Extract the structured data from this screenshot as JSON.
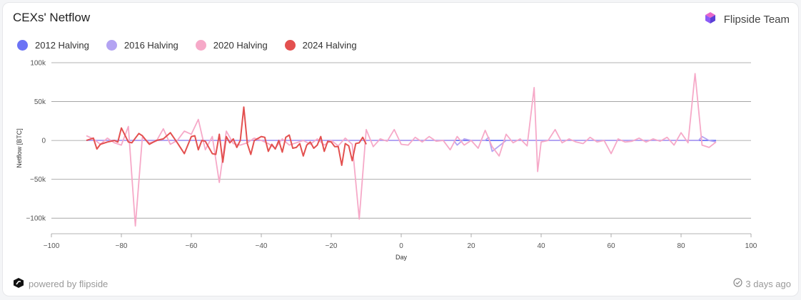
{
  "header": {
    "title": "CEXs' Netflow",
    "brand_label": "Flipside Team"
  },
  "footer": {
    "powered_label": "powered by flipside",
    "updated_label": "3 days ago"
  },
  "icons": {
    "brand": "flipside-cube-icon",
    "powered": "flipside-logo-icon",
    "updated": "check-circle-icon"
  },
  "chart_data": {
    "type": "line",
    "title": "CEXs' Netflow",
    "xlabel": "Day",
    "ylabel": "Netflow [BTC]",
    "xlim": [
      -100,
      100
    ],
    "ylim": [
      -120000,
      100000
    ],
    "x_ticks": [
      -100,
      -80,
      -60,
      -40,
      -20,
      0,
      20,
      40,
      60,
      80,
      100
    ],
    "y_ticks": [
      100000,
      50000,
      0,
      -50000,
      -100000
    ],
    "y_tick_labels": [
      "100k",
      "50k",
      "0",
      "−50k",
      "−100k"
    ],
    "grid": "horizontal",
    "legend_position": "top-left",
    "series": [
      {
        "name": "2012 Halving",
        "color": "#6b73f5",
        "x": [
          -90,
          -85,
          -80,
          -75,
          -70,
          -65,
          -60,
          -55,
          -50,
          -45,
          -40,
          -35,
          -30,
          -25,
          -20,
          -15,
          -10,
          -5,
          0,
          5,
          10,
          15,
          20,
          25,
          30,
          35,
          40,
          45,
          50,
          55,
          60,
          65,
          70,
          75,
          80,
          85,
          90
        ],
        "y": [
          0,
          0,
          0,
          0,
          0,
          0,
          0,
          0,
          0,
          0,
          0,
          0,
          0,
          0,
          0,
          0,
          0,
          0,
          0,
          0,
          0,
          0,
          0,
          0,
          0,
          0,
          0,
          0,
          0,
          0,
          0,
          0,
          0,
          0,
          0,
          0,
          0
        ]
      },
      {
        "name": "2016 Halving",
        "color": "#b3a3f2",
        "x": [
          -90,
          -85,
          -80,
          -75,
          -70,
          -65,
          -60,
          -55,
          -50,
          -45,
          -40,
          -35,
          -30,
          -25,
          -20,
          -15,
          -10,
          -5,
          0,
          5,
          10,
          15,
          16,
          18,
          20,
          24,
          25,
          26,
          30,
          35,
          40,
          45,
          50,
          55,
          60,
          65,
          70,
          75,
          80,
          84,
          85,
          86,
          88,
          90
        ],
        "y": [
          0,
          0,
          0,
          0,
          0,
          0,
          0,
          0,
          0,
          0,
          0,
          0,
          0,
          0,
          0,
          0,
          0,
          0,
          0,
          0,
          0,
          0,
          -6000,
          2000,
          0,
          0,
          4000,
          -14000,
          0,
          0,
          0,
          0,
          0,
          0,
          0,
          0,
          0,
          0,
          0,
          0,
          0,
          5000,
          0,
          -2000
        ]
      },
      {
        "name": "2020 Halving",
        "color": "#f6a9c8",
        "x": [
          -90,
          -88,
          -86,
          -84,
          -82,
          -80,
          -78,
          -76,
          -74,
          -72,
          -70,
          -68,
          -66,
          -64,
          -62,
          -60,
          -58,
          -56,
          -54,
          -52,
          -50,
          -48,
          -46,
          -44,
          -42,
          -40,
          -38,
          -36,
          -34,
          -32,
          -30,
          -28,
          -26,
          -24,
          -22,
          -20,
          -18,
          -16,
          -14,
          -12,
          -10,
          -8,
          -6,
          -4,
          -2,
          0,
          2,
          4,
          6,
          8,
          10,
          12,
          14,
          16,
          18,
          20,
          22,
          24,
          26,
          28,
          30,
          32,
          34,
          36,
          38,
          39,
          40,
          42,
          44,
          46,
          48,
          50,
          52,
          54,
          56,
          58,
          60,
          62,
          64,
          66,
          68,
          70,
          72,
          74,
          76,
          78,
          80,
          82,
          84,
          86,
          88,
          90
        ],
        "y": [
          6000,
          2000,
          -5000,
          3000,
          -3000,
          -6000,
          18000,
          -110000,
          4000,
          -3000,
          -1000,
          15000,
          -5000,
          0,
          12000,
          8000,
          27000,
          -12000,
          5000,
          -54000,
          12000,
          -4000,
          -6000,
          -3000,
          3000,
          0,
          -4000,
          -10000,
          2000,
          -6000,
          -3000,
          0,
          -5000,
          2000,
          -6000,
          0,
          -7000,
          3000,
          -5000,
          -101000,
          14000,
          -8000,
          2000,
          -1000,
          14000,
          -5000,
          -6000,
          4000,
          -2000,
          5000,
          -1000,
          0,
          -12000,
          5000,
          -6000,
          0,
          -10000,
          13000,
          -8000,
          -20000,
          8000,
          -3000,
          2000,
          -7000,
          68000,
          -40000,
          -2000,
          0,
          14000,
          -3000,
          2000,
          -2000,
          -4000,
          4000,
          -2000,
          0,
          -17000,
          2000,
          -2000,
          -1000,
          3000,
          -2000,
          2000,
          -1000,
          4000,
          -6000,
          10000,
          -3000,
          86000,
          -6000,
          -9000,
          -2000
        ]
      },
      {
        "name": "2024 Halving",
        "color": "#e3504f",
        "x": [
          -90,
          -88,
          -87,
          -86,
          -84,
          -82,
          -81,
          -80,
          -78,
          -77,
          -76,
          -75,
          -74,
          -72,
          -70,
          -68,
          -66,
          -64,
          -62,
          -60,
          -59,
          -58,
          -57,
          -56,
          -54,
          -53,
          -52,
          -51,
          -50,
          -49,
          -48,
          -47,
          -46,
          -45,
          -44,
          -43,
          -42,
          -40,
          -39,
          -38,
          -37,
          -36,
          -35,
          -34,
          -33,
          -32,
          -31,
          -30,
          -29,
          -28,
          -27,
          -26,
          -25,
          -24,
          -23,
          -22,
          -21,
          -20,
          -19,
          -18,
          -17,
          -16,
          -15,
          -14,
          -13,
          -12,
          -11,
          -10
        ],
        "y": [
          0,
          3000,
          -11000,
          -5000,
          -2000,
          0,
          -2000,
          16000,
          -2000,
          -3000,
          3000,
          9000,
          6000,
          -5000,
          0,
          2000,
          10000,
          -3000,
          -17000,
          5000,
          6000,
          -12000,
          0,
          -1000,
          -17000,
          -18000,
          8000,
          -28000,
          5000,
          -3000,
          2000,
          -9000,
          0,
          43000,
          -4000,
          -18000,
          0,
          5000,
          4000,
          -14000,
          -5000,
          -11000,
          0,
          -15000,
          4000,
          7000,
          -10000,
          -9000,
          -4000,
          -20000,
          -6000,
          -2000,
          -10000,
          -6000,
          5000,
          -14000,
          -1000,
          -2000,
          -8000,
          -8000,
          -32000,
          -4000,
          -7000,
          -26000,
          -4000,
          -3000,
          4000,
          -5000
        ]
      }
    ]
  }
}
